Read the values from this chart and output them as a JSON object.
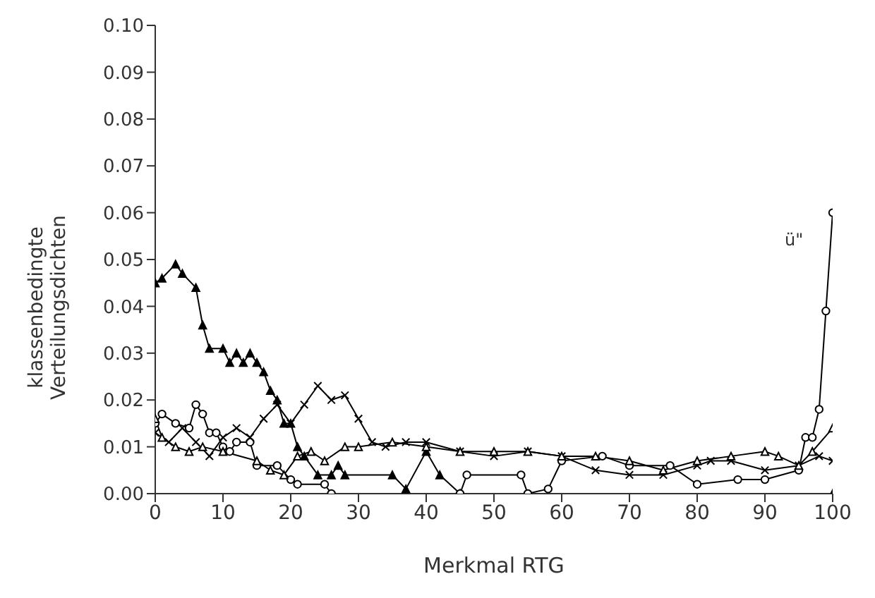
{
  "chart_data": {
    "type": "line",
    "xlabel": "Merkmal RTG",
    "ylabel": "klassenbedingte\nVerteilungsdichten",
    "xlim": [
      0,
      100
    ],
    "ylim": [
      0,
      0.1
    ],
    "xticks": [
      0,
      10,
      20,
      30,
      40,
      50,
      60,
      70,
      80,
      90,
      100
    ],
    "yticks": [
      {
        "value": 0,
        "label": "0.00"
      },
      {
        "value": 0.01,
        "label": "0.01"
      },
      {
        "value": 0.02,
        "label": "0.02"
      },
      {
        "value": 0.03,
        "label": "0.03"
      },
      {
        "value": 0.04,
        "label": "0.04"
      },
      {
        "value": 0.05,
        "label": "0.05"
      },
      {
        "value": 0.06,
        "label": "0.06"
      },
      {
        "value": 0.07,
        "label": "0.07"
      },
      {
        "value": 0.08,
        "label": "0.08"
      },
      {
        "value": 0.09,
        "label": "0.09"
      },
      {
        "value": 0.1,
        "label": "0.10"
      }
    ],
    "grid": false,
    "annotations": [
      "ü\""
    ],
    "series": [
      {
        "color": "#000000",
        "marker": "triangle",
        "x": [
          0,
          1,
          3,
          4,
          6,
          7,
          8,
          10,
          11,
          12,
          13,
          14,
          15,
          16,
          17,
          18,
          19,
          20,
          21,
          22,
          24,
          26,
          27,
          28,
          35,
          37,
          40,
          42,
          45,
          100
        ],
        "values": [
          0.045,
          0.046,
          0.049,
          0.047,
          0.044,
          0.036,
          0.031,
          0.031,
          0.028,
          0.03,
          0.028,
          0.03,
          0.028,
          0.026,
          0.022,
          0.02,
          0.015,
          0.015,
          0.01,
          0.008,
          0.004,
          0.004,
          0.006,
          0.004,
          0.004,
          0.001,
          0.009,
          0.004,
          0,
          0
        ]
      },
      {
        "color": "#000000",
        "marker": "circle",
        "x": [
          0,
          1,
          3,
          5,
          6,
          7,
          8,
          9,
          10,
          11,
          12,
          14,
          15,
          18,
          20,
          21,
          25,
          26,
          45,
          46,
          54,
          55,
          58,
          60,
          66,
          70,
          76,
          80,
          86,
          90,
          95,
          96,
          97,
          98,
          99,
          100
        ],
        "values": [
          0.015,
          0.017,
          0.015,
          0.014,
          0.019,
          0.017,
          0.013,
          0.013,
          0.01,
          0.009,
          0.011,
          0.011,
          0.006,
          0.006,
          0.003,
          0.002,
          0.002,
          0,
          0,
          0.004,
          0.004,
          0,
          0.001,
          0.007,
          0.008,
          0.006,
          0.006,
          0.002,
          0.003,
          0.003,
          0.005,
          0.012,
          0.012,
          0.018,
          0.039,
          0.06
        ]
      },
      {
        "color": "#000000",
        "marker": "cross",
        "x": [
          0,
          2,
          4,
          6,
          8,
          10,
          12,
          14,
          16,
          18,
          20,
          22,
          24,
          26,
          28,
          30,
          32,
          34,
          37,
          40,
          45,
          50,
          55,
          60,
          65,
          70,
          75,
          80,
          82,
          85,
          90,
          95,
          98,
          100
        ],
        "values": [
          0.013,
          0.011,
          0.014,
          0.011,
          0.008,
          0.012,
          0.014,
          0.012,
          0.016,
          0.019,
          0.015,
          0.019,
          0.023,
          0.02,
          0.021,
          0.016,
          0.011,
          0.01,
          0.011,
          0.011,
          0.009,
          0.008,
          0.009,
          0.008,
          0.005,
          0.004,
          0.004,
          0.006,
          0.007,
          0.007,
          0.005,
          0.006,
          0.008,
          0.007
        ]
      },
      {
        "color": "#000000",
        "marker": "triangle",
        "x": [
          0,
          1,
          3,
          5,
          7,
          10,
          15,
          17,
          19,
          21,
          23,
          25,
          28,
          30,
          35,
          40,
          45,
          50,
          55,
          60,
          65,
          70,
          75,
          80,
          85,
          90,
          92,
          95,
          97,
          100
        ],
        "values": [
          0.016,
          0.012,
          0.01,
          0.009,
          0.01,
          0.009,
          0.007,
          0.005,
          0.004,
          0.008,
          0.009,
          0.007,
          0.01,
          0.01,
          0.011,
          0.01,
          0.009,
          0.009,
          0.009,
          0.008,
          0.008,
          0.007,
          0.005,
          0.007,
          0.008,
          0.009,
          0.008,
          0.006,
          0.009,
          0.014
        ]
      }
    ]
  }
}
